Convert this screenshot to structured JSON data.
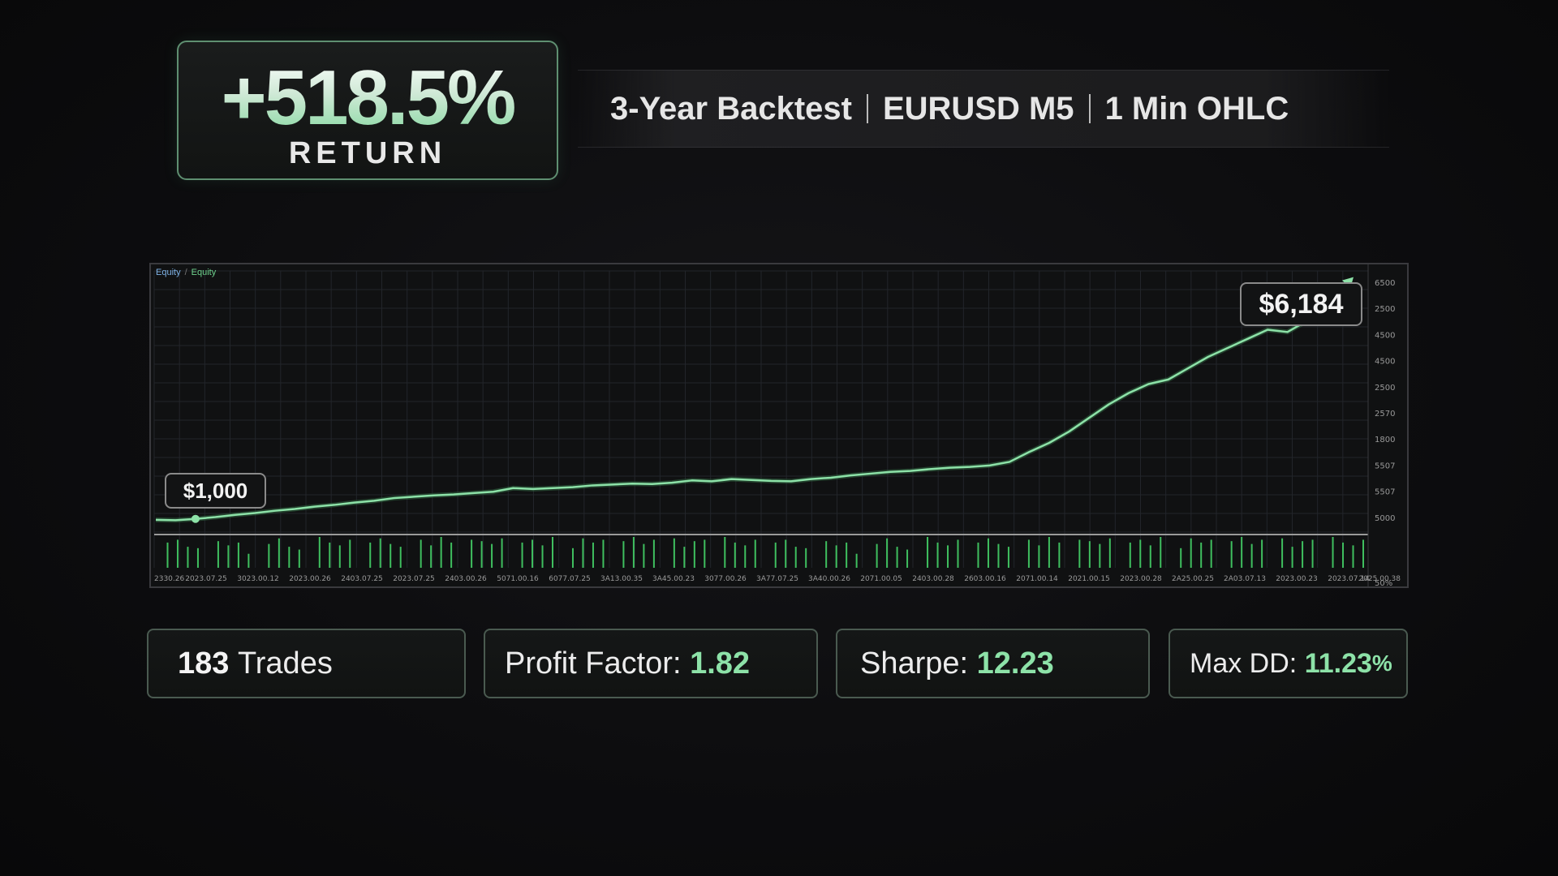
{
  "hero": {
    "return_value": "+518.5%",
    "return_label": "RETURN"
  },
  "subtitle": {
    "part1": "3-Year Backtest",
    "part2": "EURUSD M5",
    "part3": "1 Min OHLC"
  },
  "chart": {
    "legend_1": "Equity",
    "legend_sep": "/",
    "legend_2": "Equity",
    "start_label": "$1,000",
    "end_label": "$6,184"
  },
  "chart_data": {
    "type": "line",
    "series": [
      {
        "values": [
          1000,
          990,
          1020,
          1060,
          1110,
          1150,
          1200,
          1240,
          1290,
          1330,
          1380,
          1420,
          1480,
          1510,
          1540,
          1560,
          1590,
          1620,
          1700,
          1680,
          1700,
          1720,
          1760,
          1780,
          1800,
          1790,
          1820,
          1870,
          1850,
          1900,
          1880,
          1860,
          1850,
          1900,
          1930,
          1980,
          2020,
          2060,
          2080,
          2120,
          2150,
          2170,
          2200,
          2280,
          2500,
          2700,
          2950,
          3250,
          3550,
          3800,
          4000,
          4100,
          4350,
          4600,
          4800,
          5000,
          5200,
          5150,
          5400,
          5800,
          6184
        ]
      }
    ],
    "start_value": 1000,
    "end_value": 6184,
    "ylim": [
      800,
      6500
    ],
    "y_ticks": [
      "6500",
      "2500",
      "4500",
      "4500",
      "2500",
      "2570",
      "1800",
      "5507",
      "5507",
      "5000",
      "50%"
    ],
    "x_ticks": [
      "2330.26",
      "2023.07.25",
      "3023.00.12",
      "2023.00.26",
      "2403.07.25",
      "2023.07.25",
      "2403.00.26",
      "5071.00.16",
      "6077.07.25",
      "3A13.00.35",
      "3A45.00.23",
      "3077.00.26",
      "3A77.07.25",
      "3A40.00.26",
      "2071.00.05",
      "2403.00.28",
      "2603.00.16",
      "2071.00.14",
      "2021.00.15",
      "2023.00.28",
      "2A25.00.25",
      "2A03.07.13",
      "2023.00.23",
      "2023.07.14",
      "2025.00.38"
    ],
    "volume_bars": [
      12,
      18,
      20,
      15,
      14,
      22,
      19,
      16,
      18,
      10,
      20,
      17,
      21,
      15,
      13,
      19,
      22,
      18,
      16,
      20,
      14,
      18,
      21,
      17,
      15,
      19,
      20,
      16,
      22,
      18,
      12,
      20,
      19,
      17,
      21,
      15,
      18,
      20,
      16,
      22,
      19,
      14,
      21,
      18,
      20,
      16,
      19,
      22,
      17,
      20,
      18,
      21,
      15,
      19,
      20,
      17,
      22,
      18,
      16,
      20
    ],
    "grid": true,
    "colors": {
      "line": "#8de2a8",
      "volume": "#3fbf5f",
      "grid": "#22252a",
      "axis_text": "#9a9a9a"
    }
  },
  "stats": {
    "trades_value": "183",
    "trades_label": "Trades",
    "pf_label": "Profit Factor:",
    "pf_value": "1.82",
    "sharpe_label": "Sharpe:",
    "sharpe_value": "12.23",
    "dd_label": "Max DD:",
    "dd_value": "11.23",
    "dd_unit": "%"
  }
}
